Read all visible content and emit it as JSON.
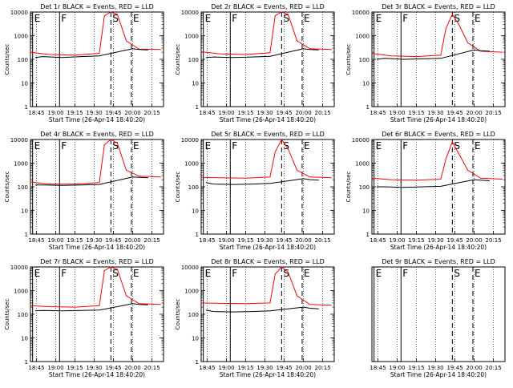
{
  "chart_data": [
    {
      "type": "line",
      "title": "Det 1r BLACK = Events, RED = LLD",
      "xlabel": "Start Time (26-Apr-14 18:40:20)",
      "ylabel": "Counts/sec",
      "xlim": [
        "18:40:20",
        "20:24:00"
      ],
      "ylim": [
        1,
        10000
      ],
      "log_y": true,
      "x_ticks": [
        "18:45",
        "19:00",
        "19:15",
        "19:30",
        "19:45",
        "20:00",
        "20:15"
      ],
      "y_ticks": [
        "1",
        "10",
        "100",
        "1000",
        "10000"
      ],
      "markers": [
        {
          "label": "E",
          "x": "18:42",
          "style": "solid"
        },
        {
          "label": "F",
          "x": "19:03",
          "style": "solid"
        },
        {
          "label": "S",
          "x": "19:43",
          "style": "dashed"
        },
        {
          "label": "E",
          "x": "19:59",
          "style": "dashed"
        }
      ],
      "series": [
        {
          "name": "LLD",
          "color": "#ff0000",
          "x": [
            "18:40",
            "18:55",
            "19:15",
            "19:34",
            "19:38",
            "19:43",
            "19:48",
            "19:55",
            "20:05",
            "20:22"
          ],
          "values": [
            200,
            160,
            150,
            180,
            7000,
            10000,
            8000,
            600,
            270,
            260
          ]
        },
        {
          "name": "Events",
          "color": "#000000",
          "x": [
            "18:44",
            "18:50",
            "19:05",
            "19:20",
            "19:34",
            "20:00",
            "20:05",
            "20:12"
          ],
          "values": [
            120,
            130,
            120,
            130,
            140,
            280,
            260,
            250
          ]
        }
      ]
    },
    {
      "type": "line",
      "title": "Det 2r BLACK = Events, RED = LLD",
      "xlabel": "Start Time (26-Apr-14 18:40:20)",
      "ylabel": "Counts/sec",
      "xlim": [
        "18:40:20",
        "20:24:00"
      ],
      "ylim": [
        1,
        10000
      ],
      "log_y": true,
      "x_ticks": [
        "18:45",
        "19:00",
        "19:15",
        "19:30",
        "19:45",
        "20:00",
        "20:15"
      ],
      "y_ticks": [
        "1",
        "10",
        "100",
        "1000",
        "10000"
      ],
      "markers": [
        {
          "label": "E",
          "x": "18:42",
          "style": "solid"
        },
        {
          "label": "F",
          "x": "19:03",
          "style": "solid"
        },
        {
          "label": "S",
          "x": "19:43",
          "style": "dashed"
        },
        {
          "label": "E",
          "x": "19:59",
          "style": "dashed"
        }
      ],
      "series": [
        {
          "name": "LLD",
          "color": "#ff0000",
          "x": [
            "18:40",
            "18:55",
            "19:15",
            "19:34",
            "19:38",
            "19:43",
            "19:48",
            "19:55",
            "20:05",
            "20:22"
          ],
          "values": [
            210,
            170,
            160,
            190,
            7000,
            10000,
            8000,
            600,
            280,
            260
          ]
        },
        {
          "name": "Events",
          "color": "#000000",
          "x": [
            "18:44",
            "18:50",
            "19:05",
            "19:20",
            "19:34",
            "20:00",
            "20:05",
            "20:12"
          ],
          "values": [
            120,
            125,
            120,
            125,
            135,
            280,
            260,
            250
          ]
        }
      ]
    },
    {
      "type": "line",
      "title": "Det 3r BLACK = Events, RED = LLD",
      "xlabel": "Start Time (26-Apr-14 18:40:20)",
      "ylabel": "Counts/sec",
      "xlim": [
        "18:40:20",
        "20:24:00"
      ],
      "ylim": [
        1,
        10000
      ],
      "log_y": true,
      "x_ticks": [
        "18:45",
        "19:00",
        "19:15",
        "19:30",
        "19:45",
        "20:00",
        "20:15"
      ],
      "y_ticks": [
        "1",
        "10",
        "100",
        "1000",
        "10000"
      ],
      "markers": [
        {
          "label": "E",
          "x": "18:42",
          "style": "solid"
        },
        {
          "label": "F",
          "x": "19:03",
          "style": "solid"
        },
        {
          "label": "S",
          "x": "19:43",
          "style": "dashed"
        },
        {
          "label": "E",
          "x": "19:59",
          "style": "dashed"
        }
      ],
      "series": [
        {
          "name": "LLD",
          "color": "#ff0000",
          "x": [
            "18:40",
            "18:55",
            "19:15",
            "19:34",
            "19:38",
            "19:43",
            "19:48",
            "19:55",
            "20:05",
            "20:22"
          ],
          "values": [
            180,
            140,
            130,
            150,
            2000,
            8000,
            3000,
            500,
            220,
            200
          ]
        },
        {
          "name": "Events",
          "color": "#000000",
          "x": [
            "18:44",
            "18:50",
            "19:05",
            "19:20",
            "19:34",
            "20:00",
            "20:05",
            "20:12"
          ],
          "values": [
            100,
            110,
            100,
            105,
            110,
            250,
            230,
            220
          ]
        }
      ]
    },
    {
      "type": "line",
      "title": "Det 4r BLACK = Events, RED = LLD",
      "xlabel": "Start Time (26-Apr-14 18:40:20)",
      "ylabel": "Counts/sec",
      "xlim": [
        "18:40:20",
        "20:24:00"
      ],
      "ylim": [
        1,
        10000
      ],
      "log_y": true,
      "x_ticks": [
        "18:45",
        "19:00",
        "19:15",
        "19:30",
        "19:45",
        "20:00",
        "20:15"
      ],
      "y_ticks": [
        "1",
        "10",
        "100",
        "1000",
        "10000"
      ],
      "markers": [
        {
          "label": "E",
          "x": "18:42",
          "style": "solid"
        },
        {
          "label": "F",
          "x": "19:03",
          "style": "solid"
        },
        {
          "label": "S",
          "x": "19:43",
          "style": "dashed"
        },
        {
          "label": "E",
          "x": "19:59",
          "style": "dashed"
        }
      ],
      "series": [
        {
          "name": "LLD",
          "color": "#ff0000",
          "x": [
            "18:40",
            "18:55",
            "19:15",
            "19:34",
            "19:38",
            "19:43",
            "19:48",
            "19:55",
            "20:05",
            "20:22"
          ],
          "values": [
            160,
            130,
            130,
            150,
            6000,
            10000,
            7000,
            500,
            280,
            260
          ]
        },
        {
          "name": "Events",
          "color": "#000000",
          "x": [
            "18:44",
            "18:50",
            "19:05",
            "19:20",
            "19:34",
            "20:00",
            "20:05",
            "20:12"
          ],
          "values": [
            120,
            120,
            115,
            120,
            125,
            260,
            250,
            240
          ]
        }
      ]
    },
    {
      "type": "line",
      "title": "Det 5r BLACK = Events, RED = LLD",
      "xlabel": "Start Time (26-Apr-14 18:40:20)",
      "ylabel": "Counts/sec",
      "xlim": [
        "18:40:20",
        "20:24:00"
      ],
      "ylim": [
        1,
        10000
      ],
      "log_y": true,
      "x_ticks": [
        "18:45",
        "19:00",
        "19:15",
        "19:30",
        "19:45",
        "20:00",
        "20:15"
      ],
      "y_ticks": [
        "1",
        "10",
        "100",
        "1000",
        "10000"
      ],
      "markers": [
        {
          "label": "E",
          "x": "18:42",
          "style": "solid"
        },
        {
          "label": "F",
          "x": "19:03",
          "style": "solid"
        },
        {
          "label": "S",
          "x": "19:43",
          "style": "dashed"
        },
        {
          "label": "E",
          "x": "19:59",
          "style": "dashed"
        }
      ],
      "series": [
        {
          "name": "LLD",
          "color": "#ff0000",
          "x": [
            "18:40",
            "18:55",
            "19:15",
            "19:34",
            "19:38",
            "19:43",
            "19:48",
            "19:55",
            "20:05",
            "20:22"
          ],
          "values": [
            250,
            240,
            230,
            260,
            3000,
            10000,
            4000,
            500,
            260,
            240
          ]
        },
        {
          "name": "Events",
          "color": "#000000",
          "x": [
            "18:44",
            "18:50",
            "19:05",
            "19:20",
            "19:34",
            "20:00",
            "20:05",
            "20:12"
          ],
          "values": [
            150,
            130,
            125,
            130,
            140,
            220,
            200,
            190
          ]
        }
      ]
    },
    {
      "type": "line",
      "title": "Det 6r BLACK = Events, RED = LLD",
      "xlabel": "Start Time (26-Apr-14 18:40:20)",
      "ylabel": "Counts/sec",
      "xlim": [
        "18:40:20",
        "20:24:00"
      ],
      "ylim": [
        1,
        10000
      ],
      "log_y": true,
      "x_ticks": [
        "18:45",
        "19:00",
        "19:15",
        "19:30",
        "19:45",
        "20:00",
        "20:15"
      ],
      "y_ticks": [
        "1",
        "10",
        "100",
        "1000",
        "10000"
      ],
      "markers": [
        {
          "label": "E",
          "x": "18:42",
          "style": "solid"
        },
        {
          "label": "F",
          "x": "19:03",
          "style": "solid"
        },
        {
          "label": "S",
          "x": "19:43",
          "style": "dashed"
        },
        {
          "label": "E",
          "x": "19:59",
          "style": "dashed"
        }
      ],
      "series": [
        {
          "name": "LLD",
          "color": "#ff0000",
          "x": [
            "18:40",
            "18:55",
            "19:15",
            "19:34",
            "19:38",
            "19:43",
            "19:48",
            "19:55",
            "20:05",
            "20:22"
          ],
          "values": [
            230,
            200,
            190,
            210,
            1500,
            8000,
            2500,
            500,
            230,
            210
          ]
        },
        {
          "name": "Events",
          "color": "#000000",
          "x": [
            "18:44",
            "18:50",
            "19:05",
            "19:20",
            "19:34",
            "20:00",
            "20:05",
            "20:12"
          ],
          "values": [
            100,
            100,
            95,
            100,
            105,
            200,
            190,
            180
          ]
        }
      ]
    },
    {
      "type": "line",
      "title": "Det 7r BLACK = Events, RED = LLD",
      "xlabel": "Start Time (26-Apr-14 18:40:20)",
      "ylabel": "Counts/sec",
      "xlim": [
        "18:40:20",
        "20:24:00"
      ],
      "ylim": [
        1,
        10000
      ],
      "log_y": true,
      "x_ticks": [
        "18:45",
        "19:00",
        "19:15",
        "19:30",
        "19:45",
        "20:00",
        "20:15"
      ],
      "y_ticks": [
        "1",
        "10",
        "100",
        "1000",
        "10000"
      ],
      "markers": [
        {
          "label": "E",
          "x": "18:42",
          "style": "solid"
        },
        {
          "label": "F",
          "x": "19:03",
          "style": "solid"
        },
        {
          "label": "S",
          "x": "19:43",
          "style": "dashed"
        },
        {
          "label": "E",
          "x": "19:59",
          "style": "dashed"
        }
      ],
      "series": [
        {
          "name": "LLD",
          "color": "#ff0000",
          "x": [
            "18:40",
            "18:55",
            "19:15",
            "19:34",
            "19:38",
            "19:43",
            "19:48",
            "19:55",
            "20:05",
            "20:22"
          ],
          "values": [
            230,
            210,
            200,
            230,
            7000,
            10000,
            8000,
            600,
            280,
            260
          ]
        },
        {
          "name": "Events",
          "color": "#000000",
          "x": [
            "18:44",
            "18:50",
            "19:05",
            "19:20",
            "19:34",
            "20:00",
            "20:05",
            "20:12"
          ],
          "values": [
            140,
            145,
            140,
            145,
            150,
            280,
            260,
            250
          ]
        }
      ]
    },
    {
      "type": "line",
      "title": "Det 8r BLACK = Events, RED = LLD",
      "xlabel": "Start Time (26-Apr-14 18:40:20)",
      "ylabel": "Counts/sec",
      "xlim": [
        "18:40:20",
        "20:24:00"
      ],
      "ylim": [
        1,
        10000
      ],
      "log_y": true,
      "x_ticks": [
        "18:45",
        "19:00",
        "19:15",
        "19:30",
        "19:45",
        "20:00",
        "20:15"
      ],
      "y_ticks": [
        "1",
        "10",
        "100",
        "1000",
        "10000"
      ],
      "markers": [
        {
          "label": "E",
          "x": "18:42",
          "style": "solid"
        },
        {
          "label": "F",
          "x": "19:03",
          "style": "solid"
        },
        {
          "label": "S",
          "x": "19:43",
          "style": "dashed"
        },
        {
          "label": "E",
          "x": "19:59",
          "style": "dashed"
        }
      ],
      "series": [
        {
          "name": "LLD",
          "color": "#ff0000",
          "x": [
            "18:40",
            "18:55",
            "19:15",
            "19:34",
            "19:38",
            "19:43",
            "19:48",
            "19:55",
            "20:05",
            "20:22"
          ],
          "values": [
            300,
            290,
            280,
            300,
            5000,
            10000,
            6000,
            600,
            260,
            240
          ]
        },
        {
          "name": "Events",
          "color": "#000000",
          "x": [
            "18:44",
            "18:50",
            "19:05",
            "19:20",
            "19:34",
            "20:00",
            "20:05",
            "20:12"
          ],
          "values": [
            150,
            130,
            125,
            130,
            140,
            200,
            180,
            170
          ]
        }
      ]
    },
    {
      "type": "line",
      "title": "Det 9r BLACK = Events, RED = LLD",
      "xlabel": "Start Time (26-Apr-14 18:40:20)",
      "ylabel": "",
      "xlim": [
        "18:40:20",
        "20:24:00"
      ],
      "ylim": [
        1,
        10000
      ],
      "log_y": true,
      "hide_y_labels": true,
      "x_ticks": [
        "18:45",
        "19:00",
        "19:15",
        "19:30",
        "19:45",
        "20:00",
        "20:15"
      ],
      "y_ticks": [],
      "markers": [
        {
          "label": "E",
          "x": "18:42",
          "style": "solid"
        },
        {
          "label": "F",
          "x": "19:03",
          "style": "solid"
        },
        {
          "label": "S",
          "x": "19:43",
          "style": "dashed"
        },
        {
          "label": "E",
          "x": "19:59",
          "style": "dashed"
        }
      ],
      "series": []
    }
  ]
}
